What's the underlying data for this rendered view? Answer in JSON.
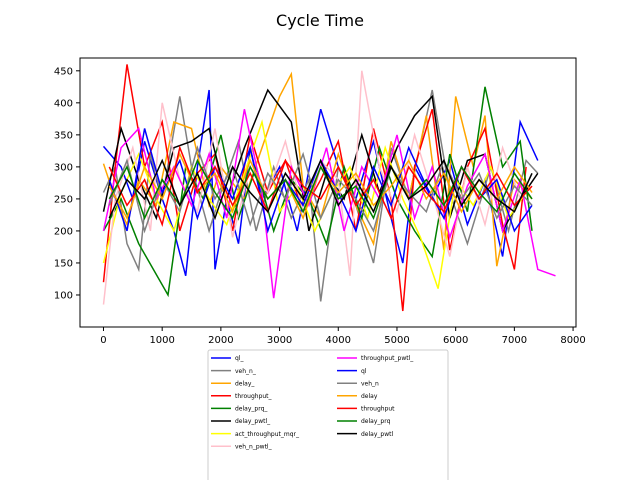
{
  "chart_data": {
    "type": "line",
    "title": "Cycle Time",
    "xlabel": "",
    "ylabel": "",
    "xlim": [
      -400,
      8050
    ],
    "ylim": [
      50,
      470
    ],
    "x_ticks": [
      0,
      1000,
      2000,
      3000,
      4000,
      5000,
      6000,
      7000,
      8000
    ],
    "y_ticks": [
      100,
      150,
      200,
      250,
      300,
      350,
      400,
      450
    ],
    "x_tick_labels": [
      "0",
      "1000",
      "2000",
      "3000",
      "4000",
      "5000",
      "6000",
      "7000",
      "8000"
    ],
    "y_tick_labels": [
      "100",
      "150",
      "200",
      "250",
      "300",
      "350",
      "400",
      "450"
    ],
    "grid": false,
    "legend_placement": "bottom-center",
    "series": [
      {
        "name": "ql_",
        "color": "#0000ff",
        "x": [
          0,
          300,
          500,
          700,
          1000,
          1200,
          1400,
          1600,
          1800,
          1900,
          2100,
          2300,
          2500,
          2700,
          3000,
          3300,
          3700,
          4000,
          4300,
          4600,
          4900,
          5100,
          5300,
          5600,
          5900,
          6200,
          6500,
          6800,
          7100,
          7400
        ],
        "y": [
          332,
          300,
          250,
          340,
          250,
          200,
          130,
          300,
          420,
          140,
          250,
          180,
          330,
          250,
          300,
          200,
          390,
          300,
          250,
          340,
          220,
          150,
          300,
          250,
          310,
          210,
          280,
          160,
          370,
          310
        ]
      },
      {
        "name": "veh_n_",
        "color": "#808080",
        "x": [
          0,
          200,
          400,
          600,
          800,
          1000,
          1300,
          1500,
          1800,
          2000,
          2300,
          2600,
          2900,
          3200,
          3500,
          3700,
          4000,
          4300,
          4600,
          4900,
          5200,
          5600,
          5900,
          6200,
          6600,
          6900,
          7200,
          7400
        ],
        "y": [
          260,
          300,
          180,
          140,
          320,
          250,
          410,
          300,
          200,
          260,
          340,
          200,
          300,
          220,
          280,
          90,
          300,
          240,
          150,
          330,
          250,
          420,
          260,
          180,
          300,
          200,
          310,
          290
        ]
      },
      {
        "name": "delay_",
        "color": "#ffa500",
        "x": [
          0,
          200,
          400,
          600,
          900,
          1200,
          1500,
          1800,
          2000,
          2400,
          2700,
          3000,
          3200,
          3400,
          3700,
          4000,
          4300,
          4600,
          4900,
          5200,
          5500,
          5800,
          6000,
          6300,
          6500,
          6700,
          7000,
          7300
        ],
        "y": [
          305,
          250,
          210,
          280,
          240,
          370,
          360,
          240,
          300,
          250,
          330,
          410,
          445,
          270,
          220,
          320,
          240,
          180,
          340,
          250,
          380,
          170,
          410,
          300,
          380,
          145,
          280,
          250
        ]
      },
      {
        "name": "throughput_",
        "color": "#ff0000",
        "x": [
          0,
          200,
          400,
          700,
          1000,
          1300,
          1600,
          1900,
          2200,
          2500,
          2800,
          3100,
          3400,
          3700,
          4000,
          4300,
          4600,
          4900,
          5100,
          5300,
          5600,
          5900,
          6200,
          6500,
          6800,
          7000,
          7200
        ],
        "y": [
          120,
          300,
          460,
          300,
          370,
          200,
          290,
          320,
          200,
          350,
          260,
          310,
          230,
          280,
          340,
          200,
          360,
          250,
          75,
          300,
          390,
          170,
          300,
          360,
          210,
          140,
          300
        ]
      },
      {
        "name": "delay_prq_",
        "color": "#008000",
        "x": [
          0,
          300,
          600,
          1100,
          1400,
          1700,
          2000,
          2300,
          2600,
          2900,
          3200,
          3500,
          3800,
          4100,
          4400,
          4700,
          5000,
          5300,
          5600,
          5900,
          6200,
          6500,
          6800,
          7100,
          7300
        ],
        "y": [
          200,
          250,
          180,
          100,
          300,
          250,
          350,
          220,
          300,
          200,
          280,
          250,
          180,
          300,
          220,
          330,
          250,
          200,
          160,
          320,
          230,
          425,
          300,
          340,
          200
        ]
      },
      {
        "name": "delay_pwtl_",
        "color": "#000000",
        "x": [
          0,
          300,
          600,
          900,
          1200,
          1500,
          1800,
          2100,
          2400,
          2800,
          3200,
          3500,
          3800,
          4100,
          4400,
          4700,
          5000,
          5300,
          5600,
          5900,
          6200,
          6500,
          6800,
          7100,
          7400
        ],
        "y": [
          230,
          360,
          280,
          220,
          330,
          340,
          360,
          250,
          330,
          420,
          370,
          200,
          290,
          250,
          350,
          260,
          330,
          380,
          410,
          220,
          310,
          320,
          200,
          250,
          290
        ]
      },
      {
        "name": "act_throughput_mqr_",
        "color": "#ffff00",
        "x": [
          0,
          300,
          600,
          900,
          1200,
          1500,
          1800,
          2100,
          2400,
          2700,
          3000,
          3300,
          3600,
          3900,
          4200,
          4500,
          4800,
          5100,
          5400,
          5700,
          6000,
          6300,
          6600,
          6900,
          7200
        ],
        "y": [
          150,
          260,
          320,
          250,
          200,
          300,
          250,
          210,
          290,
          370,
          230,
          270,
          200,
          260,
          300,
          220,
          330,
          250,
          190,
          110,
          280,
          240,
          300,
          220,
          260
        ]
      },
      {
        "name": "veh_n_pwtl_",
        "color": "#ffc0cb",
        "x": [
          0,
          200,
          500,
          800,
          1000,
          1300,
          1600,
          1900,
          2200,
          2500,
          2800,
          3100,
          3400,
          3700,
          4000,
          4200,
          4400,
          4700,
          5000,
          5300,
          5600,
          5900,
          6200,
          6500,
          6800,
          7100
        ],
        "y": [
          85,
          250,
          330,
          200,
          400,
          280,
          230,
          360,
          190,
          300,
          260,
          340,
          230,
          310,
          280,
          130,
          450,
          300,
          230,
          350,
          260,
          160,
          300,
          210,
          330,
          250
        ]
      },
      {
        "name": "throughput_pwtl_",
        "color": "#ff00ff",
        "x": [
          0,
          300,
          600,
          900,
          1200,
          1500,
          1800,
          2100,
          2400,
          2700,
          2900,
          3200,
          3500,
          3800,
          4100,
          4400,
          4700,
          5000,
          5300,
          5600,
          5900,
          6200,
          6500,
          6800,
          7100,
          7400,
          7700
        ],
        "y": [
          200,
          330,
          360,
          250,
          300,
          240,
          320,
          220,
          390,
          260,
          95,
          300,
          240,
          330,
          200,
          300,
          250,
          350,
          220,
          300,
          190,
          270,
          320,
          200,
          280,
          140,
          130
        ]
      },
      {
        "name": "ql",
        "color": "#0000ff",
        "x": [
          100,
          400,
          700,
          1000,
          1300,
          1600,
          1900,
          2200,
          2500,
          2800,
          3100,
          3400,
          3700,
          4000,
          4300,
          4600,
          4900,
          5200,
          5500,
          5800,
          6100,
          6400,
          6700,
          7000,
          7300
        ],
        "y": [
          280,
          200,
          360,
          260,
          310,
          220,
          300,
          250,
          330,
          200,
          280,
          240,
          310,
          260,
          200,
          300,
          240,
          330,
          270,
          220,
          300,
          250,
          280,
          200,
          240
        ]
      },
      {
        "name": "veh_n",
        "color": "#808080",
        "x": [
          100,
          400,
          700,
          1000,
          1300,
          1600,
          1900,
          2200,
          2500,
          2800,
          3100,
          3400,
          3700,
          4000,
          4300,
          4600,
          4900,
          5200,
          5500,
          5800,
          6100,
          6400,
          6700,
          7000,
          7300
        ],
        "y": [
          240,
          310,
          200,
          280,
          230,
          330,
          250,
          300,
          210,
          290,
          250,
          320,
          220,
          280,
          250,
          200,
          300,
          260,
          230,
          310,
          250,
          290,
          220,
          270,
          240
        ]
      },
      {
        "name": "delay",
        "color": "#ffa500",
        "x": [
          100,
          400,
          700,
          1000,
          1300,
          1600,
          1900,
          2200,
          2500,
          2800,
          3100,
          3400,
          3700,
          4000,
          4300,
          4600,
          4900,
          5200,
          5500,
          5800,
          6100,
          6400,
          6700,
          7000,
          7300
        ],
        "y": [
          270,
          220,
          300,
          250,
          320,
          260,
          290,
          230,
          310,
          250,
          280,
          220,
          300,
          260,
          290,
          240,
          270,
          310,
          250,
          290,
          230,
          280,
          250,
          300,
          260
        ]
      },
      {
        "name": "throughput",
        "color": "#ff0000",
        "x": [
          100,
          400,
          700,
          1000,
          1300,
          1600,
          1900,
          2200,
          2500,
          2800,
          3100,
          3400,
          3700,
          4000,
          4300,
          4600,
          4900,
          5200,
          5500,
          5800,
          6100,
          6400,
          6700,
          7000,
          7300
        ],
        "y": [
          300,
          240,
          280,
          210,
          330,
          260,
          300,
          240,
          290,
          230,
          310,
          270,
          250,
          300,
          240,
          280,
          220,
          300,
          260,
          230,
          300,
          250,
          290,
          240,
          270
        ]
      },
      {
        "name": "delay_prq",
        "color": "#008000",
        "x": [
          100,
          400,
          700,
          1000,
          1300,
          1600,
          1900,
          2200,
          2500,
          2800,
          3100,
          3400,
          3700,
          4000,
          4300,
          4600,
          4900,
          5200,
          5500,
          5800,
          6100,
          6400,
          6700,
          7000,
          7300
        ],
        "y": [
          250,
          300,
          220,
          280,
          240,
          310,
          260,
          220,
          300,
          250,
          280,
          230,
          300,
          250,
          270,
          220,
          300,
          250,
          280,
          240,
          300,
          260,
          230,
          290,
          250
        ]
      },
      {
        "name": "delay_pwtl",
        "color": "#000000",
        "x": [
          100,
          400,
          700,
          1000,
          1300,
          1600,
          1900,
          2200,
          2500,
          2800,
          3100,
          3400,
          3700,
          4000,
          4300,
          4600,
          4900,
          5200,
          5500,
          5800,
          6100,
          6400,
          6700,
          7000,
          7300
        ],
        "y": [
          220,
          280,
          250,
          310,
          240,
          290,
          220,
          300,
          260,
          230,
          290,
          250,
          310,
          240,
          280,
          230,
          300,
          250,
          270,
          310,
          240,
          280,
          250,
          230,
          290
        ]
      }
    ]
  }
}
